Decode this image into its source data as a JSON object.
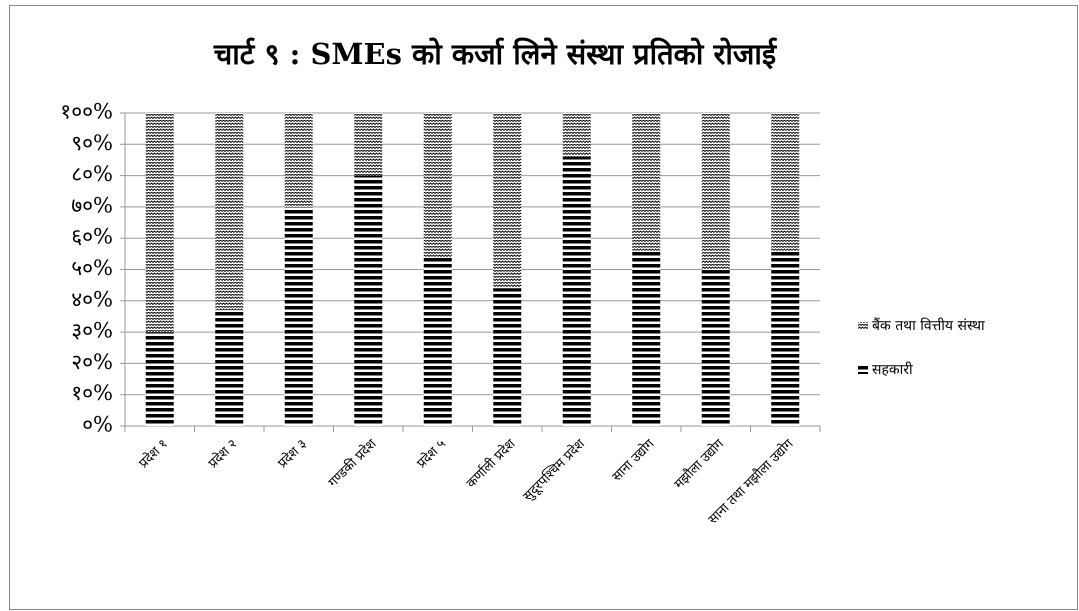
{
  "chart_data": {
    "type": "stacked_bar_100",
    "title": "चार्ट ९ : SMEs को कर्जा लिने संस्था प्रतिको रोजाई",
    "categories": [
      "प्रदेश १",
      "प्रदेश २",
      "प्रदेश ३",
      "गण्डकी प्रदेश",
      "प्रदेश ५",
      "कर्णाली प्रदेश",
      "सुदूरपश्चिम प्रदेश",
      "साना उद्योग",
      "मझौला उद्योग",
      "साना तथा मझौला उद्योग"
    ],
    "series": [
      {
        "name": "बैंक तथा वित्तीय संस्था",
        "color": "#000000",
        "pattern": "dots",
        "values": [
          70,
          63,
          30,
          20,
          46,
          56,
          14,
          44,
          50,
          44
        ]
      },
      {
        "name": "सहकारी",
        "color": "#000000",
        "pattern": "stripes",
        "values": [
          30,
          37,
          70,
          80,
          54,
          44,
          86,
          56,
          50,
          56
        ]
      }
    ],
    "ylim": [
      0,
      100
    ],
    "yticks": [
      {
        "value": 0,
        "label": "०%"
      },
      {
        "value": 10,
        "label": "१०%"
      },
      {
        "value": 20,
        "label": "२०%"
      },
      {
        "value": 30,
        "label": "३०%"
      },
      {
        "value": 40,
        "label": "४०%"
      },
      {
        "value": 50,
        "label": "५०%"
      },
      {
        "value": 60,
        "label": "६०%"
      },
      {
        "value": 70,
        "label": "७०%"
      },
      {
        "value": 80,
        "label": "८०%"
      },
      {
        "value": 90,
        "label": "९०%"
      },
      {
        "value": 100,
        "label": "१००%"
      }
    ],
    "grid": true,
    "legend": "right"
  }
}
